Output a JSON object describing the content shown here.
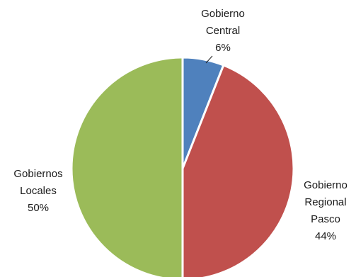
{
  "chart_data": {
    "type": "pie",
    "title": "",
    "slices": [
      {
        "label_lines": [
          "Gobierno",
          "Central"
        ],
        "percent_label": "6%",
        "value": 6,
        "color": "#4f81bd"
      },
      {
        "label_lines": [
          "Gobierno",
          "Regional",
          "Pasco"
        ],
        "percent_label": "44%",
        "value": 44,
        "color": "#c0504d"
      },
      {
        "label_lines": [
          "Gobiernos",
          "Locales"
        ],
        "percent_label": "50%",
        "value": 50,
        "color": "#9bbb59"
      }
    ],
    "legend": "none",
    "data_labels": "outside with leader line for smallest slice"
  }
}
